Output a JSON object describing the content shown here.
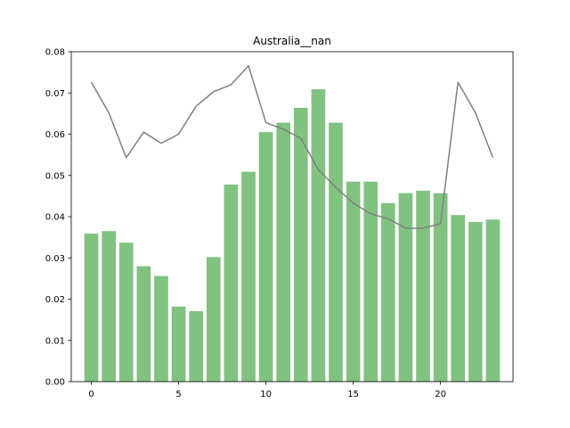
{
  "chart_data": {
    "type": "bar",
    "title": "Australia__nan",
    "xlabel": "",
    "ylabel": "",
    "xlim": [
      -1.15,
      24.15
    ],
    "ylim": [
      0,
      0.08
    ],
    "x_ticks": [
      0,
      5,
      10,
      15,
      20
    ],
    "y_ticks": [
      0.0,
      0.01,
      0.02,
      0.03,
      0.04,
      0.05,
      0.06,
      0.07,
      0.08
    ],
    "x_tick_labels": [
      "0",
      "5",
      "10",
      "15",
      "20"
    ],
    "y_tick_labels": [
      "0.00",
      "0.01",
      "0.02",
      "0.03",
      "0.04",
      "0.05",
      "0.06",
      "0.07",
      "0.08"
    ],
    "grid": false,
    "legend": "none",
    "x": [
      0,
      1,
      2,
      3,
      4,
      5,
      6,
      7,
      8,
      9,
      10,
      11,
      12,
      13,
      14,
      15,
      16,
      17,
      18,
      19,
      20,
      21,
      22,
      23
    ],
    "series": [
      {
        "type": "bar",
        "color": "#81c281",
        "values": [
          0.0359,
          0.0365,
          0.0337,
          0.028,
          0.0256,
          0.0182,
          0.0171,
          0.0302,
          0.0478,
          0.0509,
          0.0605,
          0.0628,
          0.0664,
          0.0709,
          0.0628,
          0.0485,
          0.0485,
          0.0433,
          0.0457,
          0.0463,
          0.0457,
          0.0404,
          0.0387,
          0.0393
        ]
      },
      {
        "type": "line",
        "color": "#808080",
        "values": [
          0.0726,
          0.0652,
          0.0543,
          0.0605,
          0.0578,
          0.06,
          0.0668,
          0.0703,
          0.072,
          0.0766,
          0.0628,
          0.0612,
          0.059,
          0.0514,
          0.0471,
          0.0433,
          0.0407,
          0.0395,
          0.0372,
          0.0372,
          0.0383,
          0.0726,
          0.0652,
          0.0543
        ]
      }
    ]
  }
}
